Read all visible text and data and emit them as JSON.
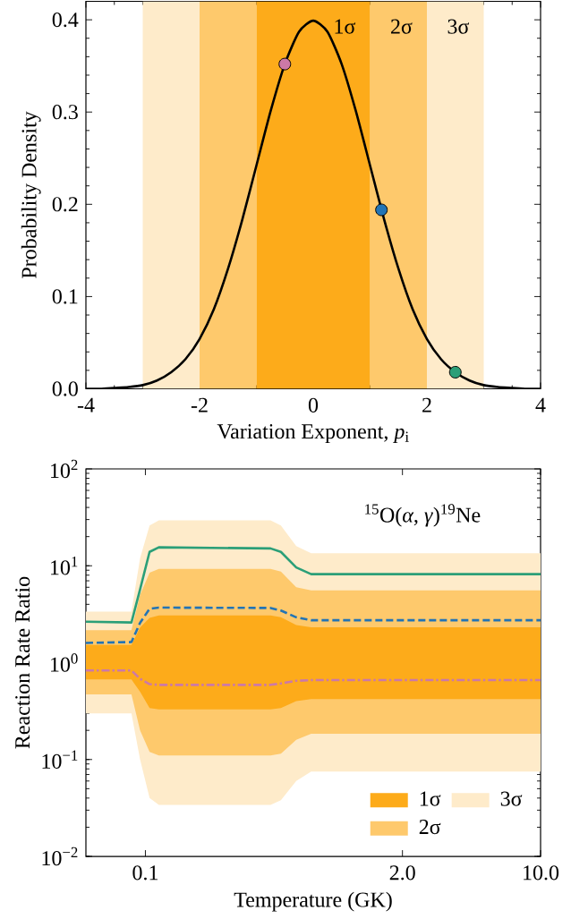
{
  "chart_data": [
    {
      "type": "line",
      "xlabel": "Variation Exponent, *p*$_{i}$",
      "ylabel": "Probability Density",
      "xlim": [
        -4,
        4
      ],
      "ylim": [
        0,
        0.42
      ],
      "xticks": [
        -4,
        -2,
        0,
        2,
        4
      ],
      "yticks": [
        {
          "value": 0,
          "label": "0.0"
        },
        {
          "value": 0.1,
          "label": "0.1"
        },
        {
          "value": 0.2,
          "label": "0.2"
        },
        {
          "value": 0.3,
          "label": "0.3"
        },
        {
          "value": 0.4,
          "label": "0.4"
        }
      ],
      "bands": [
        {
          "axis": "x",
          "from": -3,
          "to": -2,
          "color": "#feebca"
        },
        {
          "axis": "x",
          "from": 2,
          "to": 3,
          "color": "#feebca",
          "label": "3σ"
        },
        {
          "axis": "x",
          "from": -2,
          "to": -1,
          "color": "#fec96c"
        },
        {
          "axis": "x",
          "from": 1,
          "to": 2,
          "color": "#fec96c",
          "label": "2σ"
        },
        {
          "axis": "x",
          "from": -1,
          "to": 1,
          "color": "#fdab1a",
          "label": "1σ"
        }
      ],
      "series": [
        {
          "type": "line",
          "color": "#000000",
          "marker": "none",
          "x": [
            -4,
            -3.75,
            -3.5,
            -3.25,
            -3,
            -2.75,
            -2.5,
            -2.25,
            -2,
            -1.75,
            -1.5,
            -1.25,
            -1,
            -0.75,
            -0.5,
            -0.25,
            0,
            0.25,
            0.5,
            0.75,
            1,
            1.25,
            1.5,
            1.75,
            2,
            2.25,
            2.5,
            2.75,
            3,
            3.25,
            3.5,
            3.75,
            4
          ],
          "values": [
            0.0,
            0.0,
            0.001,
            0.002,
            0.004,
            0.009,
            0.018,
            0.032,
            0.054,
            0.086,
            0.13,
            0.183,
            0.242,
            0.301,
            0.352,
            0.387,
            0.399,
            0.387,
            0.352,
            0.301,
            0.242,
            0.183,
            0.13,
            0.086,
            0.054,
            0.032,
            0.018,
            0.009,
            0.004,
            0.002,
            0.001,
            0.0,
            0.0
          ]
        },
        {
          "type": "scatter",
          "color": "#cc79a7",
          "marker": "circle",
          "x": [
            -0.5
          ],
          "values": [
            0.352
          ]
        },
        {
          "type": "scatter",
          "color": "#2274b5",
          "marker": "circle",
          "x": [
            1.2
          ],
          "values": [
            0.194
          ]
        },
        {
          "type": "scatter",
          "color": "#2b9f78",
          "marker": "circle",
          "x": [
            2.5
          ],
          "values": [
            0.018
          ]
        }
      ]
    },
    {
      "type": "line",
      "xlabel": "Temperature (GK)",
      "ylabel": "Reaction Rate Ratio",
      "log": "xy",
      "xlim": [
        0.05,
        10
      ],
      "ylim": [
        0.01,
        100
      ],
      "xticks": [
        0.1,
        {
          "value": 2,
          "label": "2.0"
        },
        {
          "value": 10,
          "label": "10.0"
        }
      ],
      "yticks": [
        {
          "value": 0.01,
          "label": "10$^{−2}$"
        },
        {
          "value": 0.1,
          "label": "10$^{−1}$"
        },
        {
          "value": 1,
          "label": "10$^{0}$"
        },
        {
          "value": 10,
          "label": "10$^{1}$"
        },
        {
          "value": 100,
          "label": "10$^{2}$"
        }
      ],
      "annotations": [
        "$^{15}$O(*α*, *γ*)$^{19}$Ne"
      ],
      "legend": "bottom right",
      "x": [
        0.05,
        0.085,
        0.094,
        0.105,
        0.117,
        0.43,
        0.485,
        0.58,
        0.69,
        10
      ],
      "series": [
        {
          "type": "area",
          "name": "3σ",
          "color": "#feebca",
          "values": [
            null,
            null,
            null,
            null,
            null,
            null,
            null,
            null,
            null,
            null
          ],
          "lower": [
            0.3,
            0.3,
            0.1,
            0.04,
            0.034,
            0.034,
            0.038,
            0.06,
            0.075,
            0.075
          ],
          "upper": [
            3.36,
            3.36,
            12,
            26,
            29.4,
            29.4,
            26,
            16,
            13.5,
            13.5
          ]
        },
        {
          "type": "area",
          "name": "2σ",
          "color": "#fec96c",
          "values": [
            null,
            null,
            null,
            null,
            null,
            null,
            null,
            null,
            null,
            null
          ],
          "lower": [
            0.47,
            0.47,
            0.2,
            0.12,
            0.11,
            0.11,
            0.115,
            0.16,
            0.184,
            0.184
          ],
          "upper": [
            2.16,
            2.16,
            5.0,
            8.5,
            9.3,
            9.3,
            8.7,
            6.0,
            5.57,
            5.57
          ]
        },
        {
          "type": "area",
          "name": "1σ",
          "color": "#fdab1a",
          "values": [
            null,
            null,
            null,
            null,
            null,
            null,
            null,
            null,
            null,
            null
          ],
          "lower": [
            0.67,
            0.67,
            0.5,
            0.34,
            0.33,
            0.33,
            0.34,
            0.4,
            0.42,
            0.42
          ],
          "upper": [
            1.52,
            1.52,
            2.3,
            2.9,
            3.08,
            3.08,
            2.95,
            2.45,
            2.32,
            2.32
          ]
        },
        {
          "type": "line",
          "color": "#2b9f78",
          "line_style": "solid",
          "values": [
            2.65,
            2.6,
            5.7,
            13.9,
            15.5,
            15.1,
            13.9,
            9.6,
            8.2,
            8.2
          ]
        },
        {
          "type": "line",
          "color": "#2274b5",
          "line_style": "dashed",
          "values": [
            1.6,
            1.63,
            2.58,
            3.6,
            3.7,
            3.67,
            3.45,
            2.94,
            2.74,
            2.74
          ]
        },
        {
          "type": "line",
          "color": "#cc79a7",
          "line_style": "dashdot",
          "values": [
            0.83,
            0.83,
            0.68,
            0.6,
            0.59,
            0.59,
            0.61,
            0.65,
            0.66,
            0.66
          ]
        }
      ]
    }
  ]
}
